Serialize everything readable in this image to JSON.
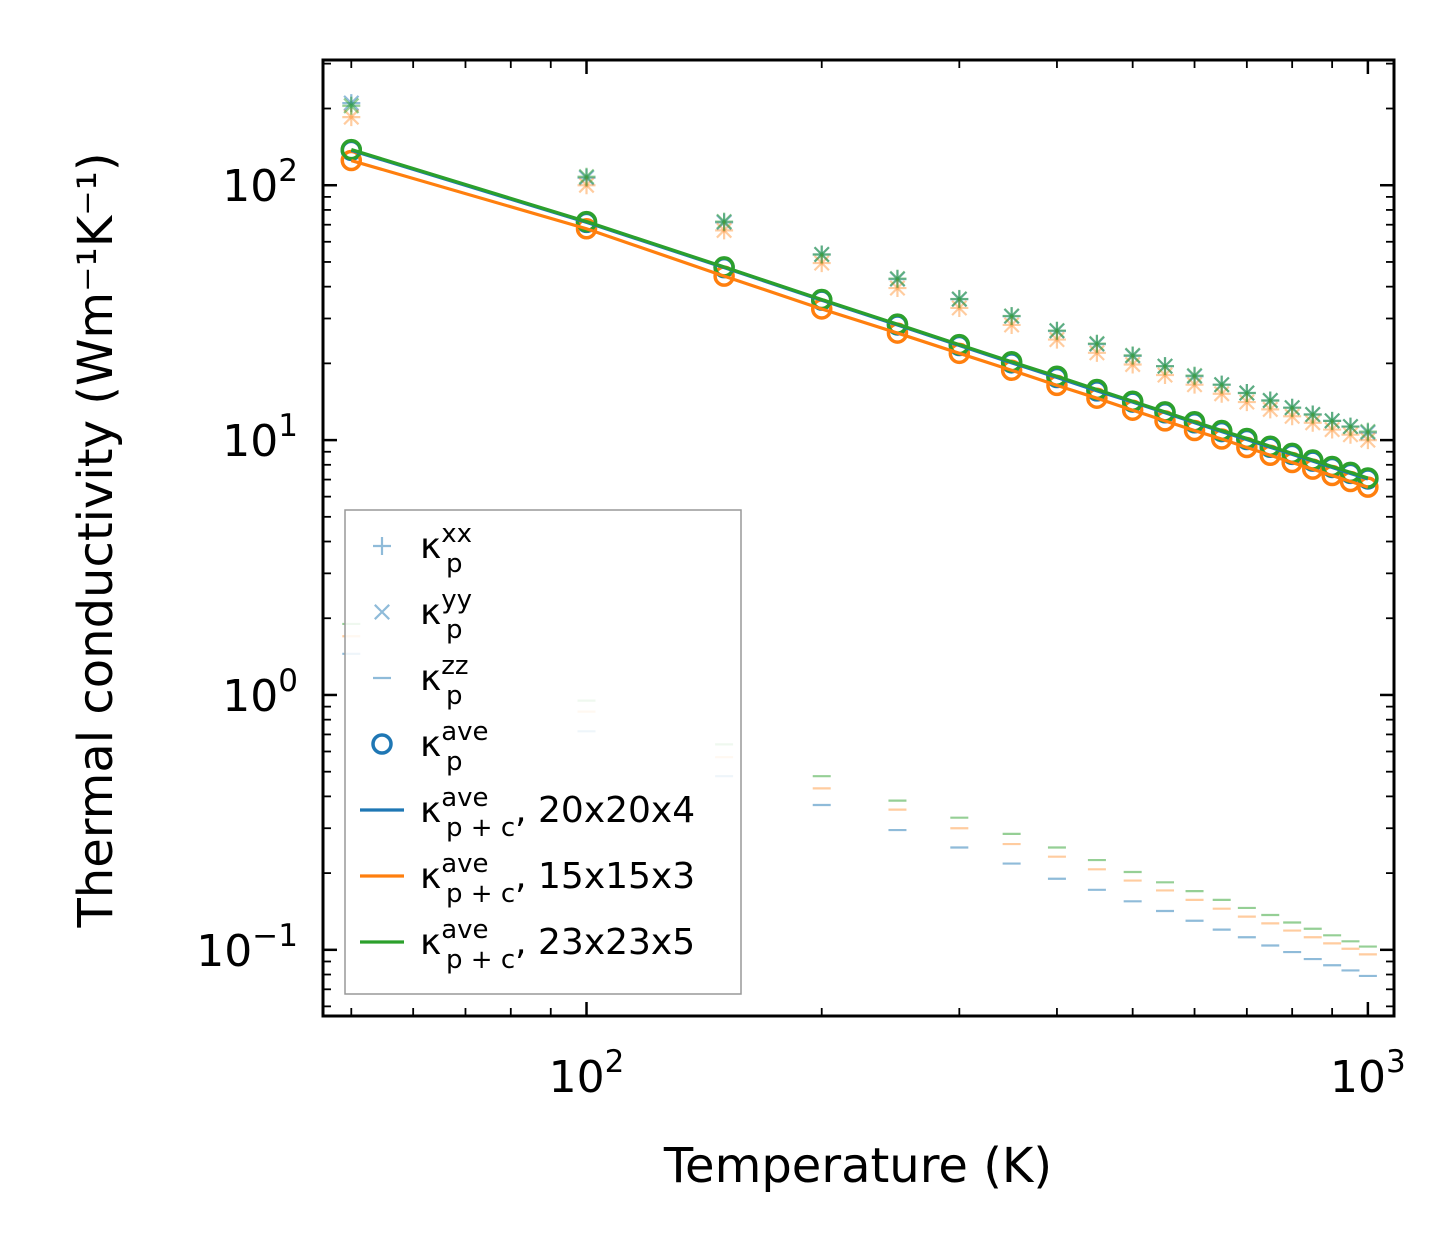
{
  "chart_data": {
    "type": "scatter",
    "xscale": "log",
    "yscale": "log",
    "xlabel": "Temperature (K)",
    "ylabel": "Thermal conductivity (Wm⁻¹K⁻¹)",
    "xlim": [
      46,
      1080
    ],
    "ylim": [
      0.055,
      310
    ],
    "xticks": [
      {
        "value": 100,
        "base": "10",
        "exp": "2"
      },
      {
        "value": 1000,
        "base": "10",
        "exp": "3"
      }
    ],
    "yticks": [
      {
        "value": 0.1,
        "base": "10",
        "exp": "−1"
      },
      {
        "value": 1,
        "base": "10",
        "exp": "0"
      },
      {
        "value": 10,
        "base": "10",
        "exp": "1"
      },
      {
        "value": 100,
        "base": "10",
        "exp": "2"
      }
    ],
    "colors": {
      "c20": "#1f77b4",
      "c15": "#ff7f0e",
      "c23": "#2ca02c"
    },
    "temperatures": [
      50,
      100,
      150,
      200,
      250,
      300,
      350,
      400,
      450,
      500,
      550,
      600,
      650,
      700,
      750,
      800,
      850,
      900,
      950,
      1000
    ],
    "series": [
      {
        "name": "kxx 20x20x4",
        "color": "#1f77b4",
        "marker": "plus",
        "alpha": 0.5,
        "values": [
          210,
          107,
          71.5,
          53.5,
          42.8,
          35.7,
          30.6,
          26.8,
          23.8,
          21.4,
          19.5,
          17.8,
          16.5,
          15.3,
          14.3,
          13.4,
          12.6,
          11.9,
          11.3,
          10.7
        ]
      },
      {
        "name": "kyy 20x20x4",
        "color": "#1f77b4",
        "marker": "x",
        "alpha": 0.5,
        "values": [
          210,
          107,
          71.5,
          53.5,
          42.8,
          35.7,
          30.6,
          26.8,
          23.8,
          21.4,
          19.5,
          17.8,
          16.5,
          15.3,
          14.3,
          13.4,
          12.6,
          11.9,
          11.3,
          10.7
        ]
      },
      {
        "name": "kzz 20x20x4",
        "color": "#1f77b4",
        "marker": "hline",
        "alpha": 0.5,
        "values": [
          1.45,
          0.72,
          0.48,
          0.37,
          0.295,
          0.252,
          0.218,
          0.19,
          0.172,
          0.155,
          0.142,
          0.13,
          0.12,
          0.112,
          0.104,
          0.098,
          0.092,
          0.087,
          0.083,
          0.079
        ]
      },
      {
        "name": "kxx 15x15x3",
        "color": "#ff7f0e",
        "marker": "plus",
        "alpha": 0.4,
        "values": [
          185,
          100,
          66.5,
          49.5,
          39.5,
          33,
          28.3,
          24.8,
          22,
          19.8,
          18,
          16.5,
          15.2,
          14.1,
          13.2,
          12.4,
          11.7,
          11,
          10.5,
          10
        ]
      },
      {
        "name": "kyy 15x15x3",
        "color": "#ff7f0e",
        "marker": "x",
        "alpha": 0.4,
        "values": [
          185,
          100,
          66.5,
          49.5,
          39.5,
          33,
          28.3,
          24.8,
          22,
          19.8,
          18,
          16.5,
          15.2,
          14.1,
          13.2,
          12.4,
          11.7,
          11,
          10.5,
          10
        ]
      },
      {
        "name": "kzz 15x15x3",
        "color": "#ff7f0e",
        "marker": "hline",
        "alpha": 0.4,
        "values": [
          1.7,
          0.86,
          0.57,
          0.43,
          0.355,
          0.3,
          0.26,
          0.232,
          0.207,
          0.187,
          0.171,
          0.157,
          0.145,
          0.135,
          0.127,
          0.119,
          0.112,
          0.106,
          0.101,
          0.096
        ]
      },
      {
        "name": "kxx 23x23x5",
        "color": "#2ca02c",
        "marker": "plus",
        "alpha": 0.5,
        "values": [
          205,
          108,
          72,
          53.5,
          43,
          35.8,
          30.7,
          26.9,
          23.9,
          21.5,
          19.5,
          17.9,
          16.5,
          15.3,
          14.3,
          13.4,
          12.6,
          11.9,
          11.3,
          10.8
        ]
      },
      {
        "name": "kyy 23x23x5",
        "color": "#2ca02c",
        "marker": "x",
        "alpha": 0.5,
        "values": [
          205,
          108,
          72,
          53.5,
          43,
          35.8,
          30.7,
          26.9,
          23.9,
          21.5,
          19.5,
          17.9,
          16.5,
          15.3,
          14.3,
          13.4,
          12.6,
          11.9,
          11.3,
          10.8
        ]
      },
      {
        "name": "kzz 23x23x5",
        "color": "#2ca02c",
        "marker": "hline",
        "alpha": 0.5,
        "values": [
          1.9,
          0.95,
          0.64,
          0.48,
          0.385,
          0.33,
          0.285,
          0.252,
          0.225,
          0.202,
          0.184,
          0.17,
          0.157,
          0.146,
          0.137,
          0.128,
          0.121,
          0.114,
          0.108,
          0.103
        ]
      },
      {
        "name": "kave 20x20x4",
        "color": "#1f77b4",
        "marker": "circle",
        "alpha": 1,
        "values": [
          137,
          71.5,
          47.5,
          35.4,
          28.3,
          23.5,
          20.1,
          17.6,
          15.6,
          14.1,
          12.8,
          11.7,
          10.8,
          10.05,
          9.37,
          8.79,
          8.27,
          7.81,
          7.4,
          7.04
        ]
      },
      {
        "name": "kave 15x15x3",
        "color": "#ff7f0e",
        "marker": "circle",
        "alpha": 1,
        "values": [
          125,
          67.5,
          44,
          32.7,
          26.3,
          21.9,
          18.8,
          16.4,
          14.6,
          13.1,
          11.9,
          10.9,
          10.1,
          9.35,
          8.72,
          8.17,
          7.69,
          7.26,
          6.88,
          6.54
        ]
      },
      {
        "name": "kave 23x23x5",
        "color": "#2ca02c",
        "marker": "circle",
        "alpha": 1,
        "values": [
          138,
          72,
          47.8,
          35.6,
          28.5,
          23.7,
          20.3,
          17.8,
          15.8,
          14.2,
          12.9,
          11.8,
          10.9,
          10.15,
          9.46,
          8.87,
          8.35,
          7.88,
          7.47,
          7.1
        ]
      },
      {
        "name": "kave p+c 20x20x4",
        "color": "#1f77b4",
        "marker": "line",
        "alpha": 1,
        "values": [
          137,
          71.5,
          47.5,
          35.4,
          28.3,
          23.5,
          20.1,
          17.6,
          15.6,
          14.1,
          12.8,
          11.7,
          10.8,
          10.05,
          9.37,
          8.79,
          8.27,
          7.81,
          7.4,
          7.04
        ]
      },
      {
        "name": "kave p+c 15x15x3",
        "color": "#ff7f0e",
        "marker": "line",
        "alpha": 1,
        "values": [
          125,
          67.5,
          44,
          32.7,
          26.3,
          21.9,
          18.8,
          16.4,
          14.6,
          13.1,
          11.9,
          10.9,
          10.1,
          9.35,
          8.72,
          8.17,
          7.69,
          7.26,
          6.88,
          6.54
        ]
      },
      {
        "name": "kave p+c 23x23x5",
        "color": "#2ca02c",
        "marker": "line",
        "alpha": 1,
        "values": [
          138,
          72,
          47.8,
          35.6,
          28.5,
          23.7,
          20.3,
          17.8,
          15.8,
          14.2,
          12.9,
          11.8,
          10.9,
          10.15,
          9.46,
          8.87,
          8.35,
          7.88,
          7.47,
          7.1
        ]
      }
    ],
    "legend": {
      "placement": "lower-left",
      "entries": [
        {
          "marker": "plus",
          "color": "#1f77b4",
          "alpha": 0.5,
          "symbol": "κ",
          "sub": "p",
          "sup": "xx",
          "suffix": ""
        },
        {
          "marker": "x",
          "color": "#1f77b4",
          "alpha": 0.5,
          "symbol": "κ",
          "sub": "p",
          "sup": "yy",
          "suffix": ""
        },
        {
          "marker": "hline",
          "color": "#1f77b4",
          "alpha": 0.5,
          "symbol": "κ",
          "sub": "p",
          "sup": "zz",
          "suffix": ""
        },
        {
          "marker": "circle",
          "color": "#1f77b4",
          "alpha": 1,
          "symbol": "κ",
          "sub": "p",
          "sup": "ave",
          "suffix": ""
        },
        {
          "marker": "line",
          "color": "#1f77b4",
          "alpha": 1,
          "symbol": "κ",
          "sub": "p + c",
          "sup": "ave",
          "suffix": ", 20x20x4"
        },
        {
          "marker": "line",
          "color": "#ff7f0e",
          "alpha": 1,
          "symbol": "κ",
          "sub": "p + c",
          "sup": "ave",
          "suffix": ", 15x15x3"
        },
        {
          "marker": "line",
          "color": "#2ca02c",
          "alpha": 1,
          "symbol": "κ",
          "sub": "p + c",
          "sup": "ave",
          "suffix": ", 23x23x5"
        }
      ]
    }
  }
}
